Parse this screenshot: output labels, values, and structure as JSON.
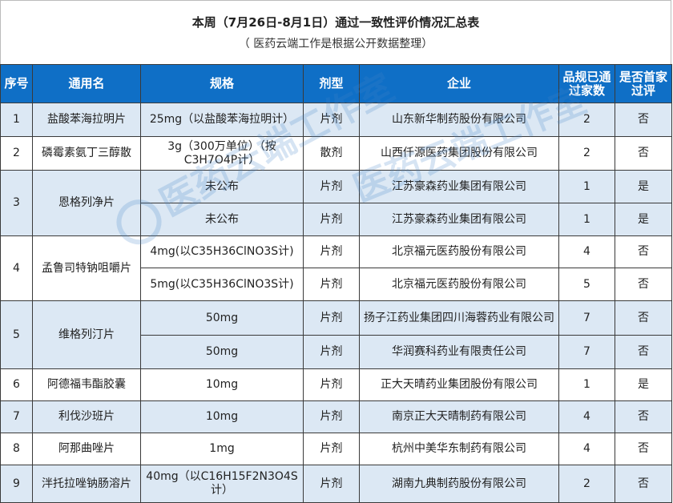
{
  "title": "本周（7月26日-8月1日）通过一致性评价情况汇总表",
  "subtitle": "（ 医药云端工作是根据公开数据整理）",
  "watermark": "医药云端工作室",
  "colors": {
    "header_bg": "#0f6fc6",
    "band_blue": "#dce8f4",
    "band_white": "#ffffff"
  },
  "columns": [
    "序号",
    "通用名",
    "规格",
    "剂型",
    "企业",
    "品规已通过家数",
    "是否首家过评"
  ],
  "groups": [
    {
      "no": "1",
      "name": "盐酸苯海拉明片",
      "rows": [
        {
          "spec": "25mg（以盐酸苯海拉明计）",
          "form": "片剂",
          "company": "山东新华制药股份有限公司",
          "count": "2",
          "first": "否"
        }
      ]
    },
    {
      "no": "2",
      "name": "磷霉素氨丁三醇散",
      "rows": [
        {
          "spec": "3g（300万单位）（按C3H7O4P计）",
          "form": "散剂",
          "company": "山西仟源医药集团股份有限公司",
          "count": "2",
          "first": "否"
        }
      ]
    },
    {
      "no": "3",
      "name": "恩格列净片",
      "rows": [
        {
          "spec": "未公布",
          "form": "片剂",
          "company": "江苏豪森药业集团有限公司",
          "count": "1",
          "first": "是"
        },
        {
          "spec": "未公布",
          "form": "片剂",
          "company": "江苏豪森药业集团有限公司",
          "count": "1",
          "first": "是"
        }
      ]
    },
    {
      "no": "4",
      "name": "孟鲁司特钠咀嚼片",
      "rows": [
        {
          "spec": "4mg(以C35H36ClNO3S计)",
          "form": "片剂",
          "company": "北京福元医药股份有限公司",
          "count": "4",
          "first": "否"
        },
        {
          "spec": "5mg(以C35H36ClNO3S计)",
          "form": "片剂",
          "company": "北京福元医药股份有限公司",
          "count": "5",
          "first": "否"
        }
      ]
    },
    {
      "no": "5",
      "name": "维格列汀片",
      "rows": [
        {
          "spec": "50mg",
          "form": "片剂",
          "company": "扬子江药业集团四川海蓉药业有限公司",
          "count": "7",
          "first": "否"
        },
        {
          "spec": "50mg",
          "form": "片剂",
          "company": "华润赛科药业有限责任公司",
          "count": "7",
          "first": "否"
        }
      ]
    },
    {
      "no": "6",
      "name": "阿德福韦酯胶囊",
      "rows": [
        {
          "spec": "10mg",
          "form": "片剂",
          "company": "正大天晴药业集团股份有限公司",
          "count": "1",
          "first": "是"
        }
      ]
    },
    {
      "no": "7",
      "name": "利伐沙班片",
      "rows": [
        {
          "spec": "10mg",
          "form": "片剂",
          "company": "南京正大天晴制药有限公司",
          "count": "4",
          "first": "否"
        }
      ]
    },
    {
      "no": "8",
      "name": "阿那曲唑片",
      "rows": [
        {
          "spec": "1mg",
          "form": "片剂",
          "company": "杭州中美华东制药有限公司",
          "count": "4",
          "first": "否"
        }
      ]
    },
    {
      "no": "9",
      "name": "泮托拉唑钠肠溶片",
      "rows": [
        {
          "spec": "40mg（以C16H15F2N3O4S 计）",
          "form": "片剂",
          "company": "湖南九典制药股份有限公司",
          "count": "2",
          "first": "否"
        }
      ]
    }
  ]
}
